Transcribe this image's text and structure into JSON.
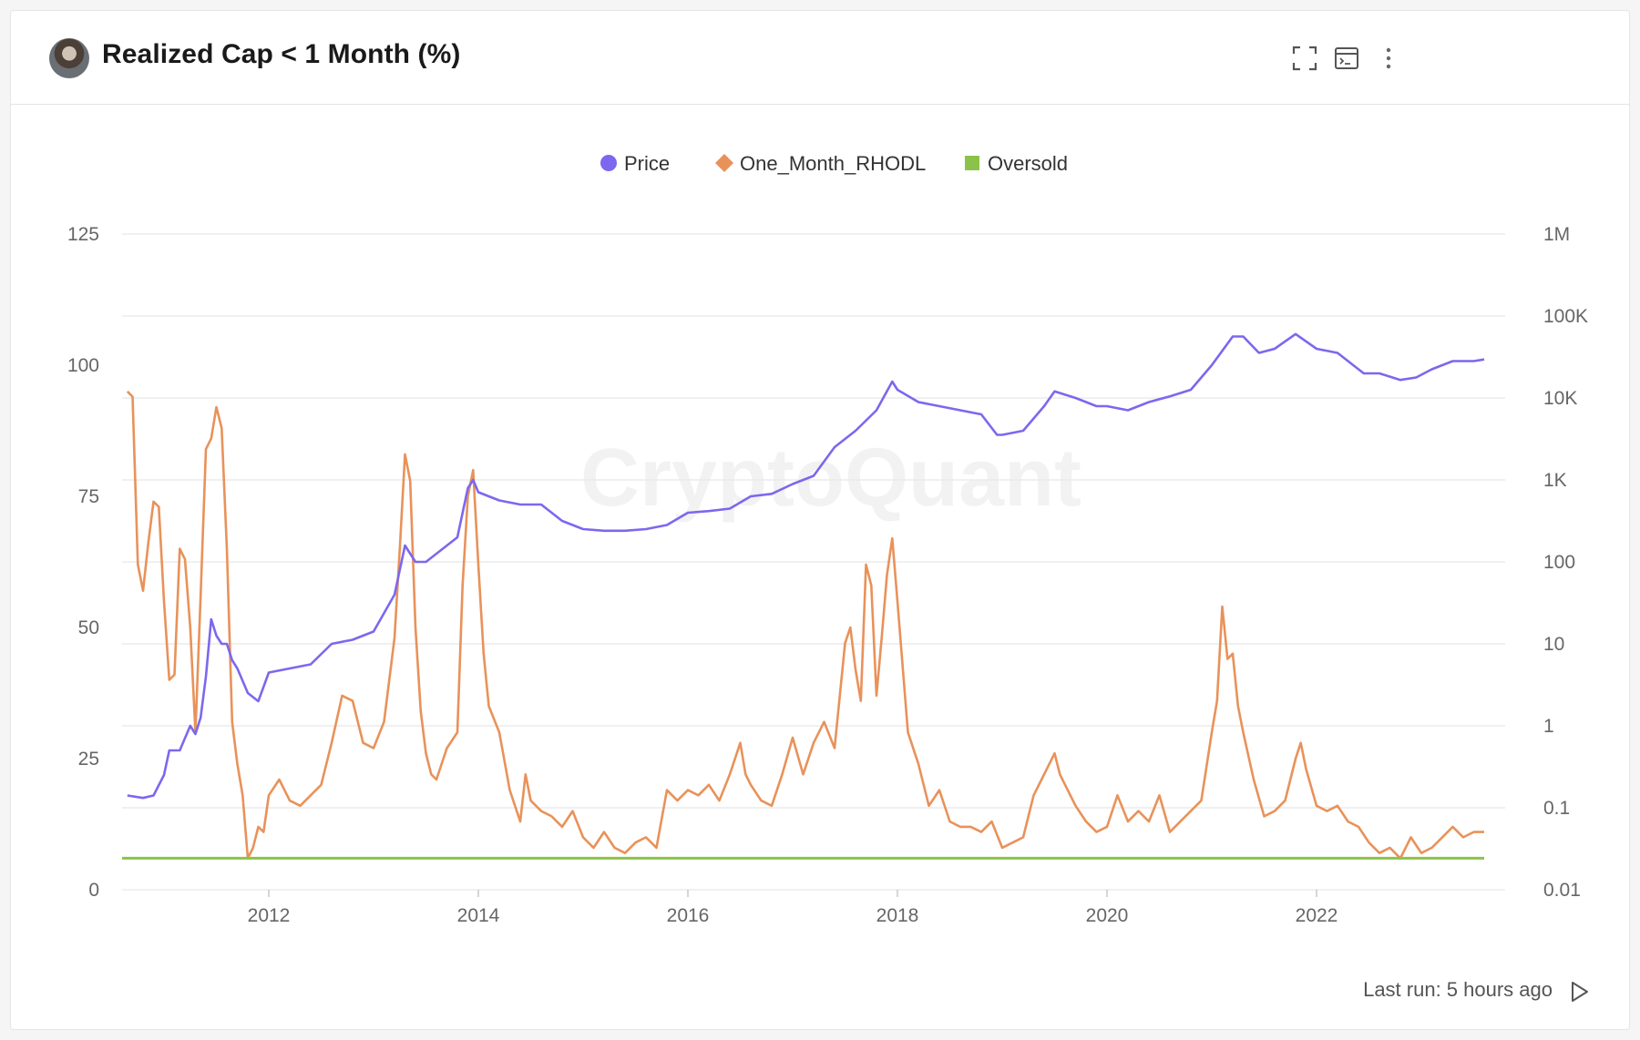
{
  "header": {
    "title": "Realized Cap < 1 Month (%)",
    "icons": [
      "avatar",
      "fullscreen-icon",
      "console-icon",
      "more-vertical-icon"
    ]
  },
  "footer": {
    "last_run": "Last run: 5 hours ago",
    "run_icon": "play-icon"
  },
  "watermark": "CryptoQuant",
  "colors": {
    "price": "#7b68ee",
    "rhodl": "#e8925a",
    "oversold": "#8bc34a",
    "grid": "#e8e8e8",
    "axis_text": "#666666"
  },
  "chart_data": {
    "type": "line",
    "title": "Realized Cap < 1 Month (%)",
    "legend": [
      {
        "name": "Price",
        "marker": "circle",
        "color": "#7b68ee"
      },
      {
        "name": "One_Month_RHODL",
        "marker": "diamond",
        "color": "#e8925a"
      },
      {
        "name": "Oversold",
        "marker": "square",
        "color": "#8bc34a"
      }
    ],
    "legend_position": "top-center",
    "x_range": [
      2010.6,
      2023.8
    ],
    "x_ticks": [
      {
        "v": 2012,
        "label": "2012"
      },
      {
        "v": 2014,
        "label": "2014"
      },
      {
        "v": 2016,
        "label": "2016"
      },
      {
        "v": 2018,
        "label": "2018"
      },
      {
        "v": 2020,
        "label": "2020"
      },
      {
        "v": 2022,
        "label": "2022"
      }
    ],
    "y_left": {
      "range": [
        0,
        125
      ],
      "ticks": [
        0,
        25,
        50,
        75,
        100,
        125
      ],
      "labels": [
        "0",
        "25",
        "50",
        "75",
        "100",
        "125"
      ]
    },
    "y_right": {
      "scale": "log",
      "log_range": [
        -2,
        6
      ],
      "labels": [
        "0.01",
        "0.1",
        "1",
        "10",
        "100",
        "1K",
        "10K",
        "100K",
        "1M"
      ]
    },
    "series": [
      {
        "name": "One_Month_RHODL",
        "axis": "left",
        "points": [
          [
            2010.65,
            95
          ],
          [
            2010.7,
            94
          ],
          [
            2010.75,
            62
          ],
          [
            2010.8,
            57
          ],
          [
            2010.85,
            66
          ],
          [
            2010.9,
            74
          ],
          [
            2010.95,
            73
          ],
          [
            2011.0,
            55
          ],
          [
            2011.05,
            40
          ],
          [
            2011.1,
            41
          ],
          [
            2011.15,
            65
          ],
          [
            2011.2,
            63
          ],
          [
            2011.25,
            50
          ],
          [
            2011.3,
            30
          ],
          [
            2011.35,
            56
          ],
          [
            2011.4,
            84
          ],
          [
            2011.45,
            86
          ],
          [
            2011.5,
            92
          ],
          [
            2011.55,
            88
          ],
          [
            2011.6,
            65
          ],
          [
            2011.65,
            32
          ],
          [
            2011.7,
            24
          ],
          [
            2011.75,
            18
          ],
          [
            2011.8,
            6
          ],
          [
            2011.85,
            8
          ],
          [
            2011.9,
            12
          ],
          [
            2011.95,
            11
          ],
          [
            2012.0,
            18
          ],
          [
            2012.1,
            21
          ],
          [
            2012.2,
            17
          ],
          [
            2012.3,
            16
          ],
          [
            2012.4,
            18
          ],
          [
            2012.5,
            20
          ],
          [
            2012.6,
            28
          ],
          [
            2012.7,
            37
          ],
          [
            2012.8,
            36
          ],
          [
            2012.9,
            28
          ],
          [
            2013.0,
            27
          ],
          [
            2013.1,
            32
          ],
          [
            2013.2,
            48
          ],
          [
            2013.25,
            65
          ],
          [
            2013.3,
            83
          ],
          [
            2013.35,
            78
          ],
          [
            2013.4,
            50
          ],
          [
            2013.45,
            34
          ],
          [
            2013.5,
            26
          ],
          [
            2013.55,
            22
          ],
          [
            2013.6,
            21
          ],
          [
            2013.7,
            27
          ],
          [
            2013.8,
            30
          ],
          [
            2013.85,
            58
          ],
          [
            2013.9,
            75
          ],
          [
            2013.95,
            80
          ],
          [
            2014.0,
            62
          ],
          [
            2014.05,
            45
          ],
          [
            2014.1,
            35
          ],
          [
            2014.2,
            30
          ],
          [
            2014.3,
            19
          ],
          [
            2014.4,
            13
          ],
          [
            2014.45,
            22
          ],
          [
            2014.5,
            17
          ],
          [
            2014.6,
            15
          ],
          [
            2014.7,
            14
          ],
          [
            2014.8,
            12
          ],
          [
            2014.9,
            15
          ],
          [
            2015.0,
            10
          ],
          [
            2015.1,
            8
          ],
          [
            2015.2,
            11
          ],
          [
            2015.3,
            8
          ],
          [
            2015.4,
            7
          ],
          [
            2015.5,
            9
          ],
          [
            2015.6,
            10
          ],
          [
            2015.7,
            8
          ],
          [
            2015.8,
            19
          ],
          [
            2015.9,
            17
          ],
          [
            2016.0,
            19
          ],
          [
            2016.1,
            18
          ],
          [
            2016.2,
            20
          ],
          [
            2016.3,
            17
          ],
          [
            2016.4,
            22
          ],
          [
            2016.5,
            28
          ],
          [
            2016.55,
            22
          ],
          [
            2016.6,
            20
          ],
          [
            2016.7,
            17
          ],
          [
            2016.8,
            16
          ],
          [
            2016.9,
            22
          ],
          [
            2017.0,
            29
          ],
          [
            2017.1,
            22
          ],
          [
            2017.2,
            28
          ],
          [
            2017.3,
            32
          ],
          [
            2017.4,
            27
          ],
          [
            2017.5,
            47
          ],
          [
            2017.55,
            50
          ],
          [
            2017.6,
            42
          ],
          [
            2017.65,
            36
          ],
          [
            2017.7,
            62
          ],
          [
            2017.75,
            58
          ],
          [
            2017.8,
            37
          ],
          [
            2017.85,
            48
          ],
          [
            2017.9,
            60
          ],
          [
            2017.95,
            67
          ],
          [
            2018.0,
            55
          ],
          [
            2018.1,
            30
          ],
          [
            2018.2,
            24
          ],
          [
            2018.3,
            16
          ],
          [
            2018.4,
            19
          ],
          [
            2018.5,
            13
          ],
          [
            2018.6,
            12
          ],
          [
            2018.7,
            12
          ],
          [
            2018.8,
            11
          ],
          [
            2018.9,
            13
          ],
          [
            2019.0,
            8
          ],
          [
            2019.1,
            9
          ],
          [
            2019.2,
            10
          ],
          [
            2019.3,
            18
          ],
          [
            2019.4,
            22
          ],
          [
            2019.5,
            26
          ],
          [
            2019.55,
            22
          ],
          [
            2019.6,
            20
          ],
          [
            2019.7,
            16
          ],
          [
            2019.8,
            13
          ],
          [
            2019.9,
            11
          ],
          [
            2020.0,
            12
          ],
          [
            2020.1,
            18
          ],
          [
            2020.2,
            13
          ],
          [
            2020.3,
            15
          ],
          [
            2020.4,
            13
          ],
          [
            2020.5,
            18
          ],
          [
            2020.6,
            11
          ],
          [
            2020.7,
            13
          ],
          [
            2020.8,
            15
          ],
          [
            2020.9,
            17
          ],
          [
            2021.0,
            30
          ],
          [
            2021.05,
            36
          ],
          [
            2021.1,
            54
          ],
          [
            2021.15,
            44
          ],
          [
            2021.2,
            45
          ],
          [
            2021.25,
            35
          ],
          [
            2021.3,
            30
          ],
          [
            2021.4,
            21
          ],
          [
            2021.5,
            14
          ],
          [
            2021.6,
            15
          ],
          [
            2021.7,
            17
          ],
          [
            2021.8,
            25
          ],
          [
            2021.85,
            28
          ],
          [
            2021.9,
            23
          ],
          [
            2022.0,
            16
          ],
          [
            2022.1,
            15
          ],
          [
            2022.2,
            16
          ],
          [
            2022.3,
            13
          ],
          [
            2022.4,
            12
          ],
          [
            2022.5,
            9
          ],
          [
            2022.6,
            7
          ],
          [
            2022.7,
            8
          ],
          [
            2022.8,
            6
          ],
          [
            2022.9,
            10
          ],
          [
            2023.0,
            7
          ],
          [
            2023.1,
            8
          ],
          [
            2023.2,
            10
          ],
          [
            2023.3,
            12
          ],
          [
            2023.4,
            10
          ],
          [
            2023.5,
            11
          ],
          [
            2023.6,
            11
          ]
        ]
      },
      {
        "name": "Price",
        "axis": "right",
        "log_values": [
          [
            2010.65,
            -0.85
          ],
          [
            2010.8,
            -0.88
          ],
          [
            2010.9,
            -0.85
          ],
          [
            2011.0,
            -0.6
          ],
          [
            2011.05,
            -0.3
          ],
          [
            2011.15,
            -0.3
          ],
          [
            2011.25,
            0
          ],
          [
            2011.3,
            -0.1
          ],
          [
            2011.35,
            0.1
          ],
          [
            2011.4,
            0.6
          ],
          [
            2011.45,
            1.3
          ],
          [
            2011.5,
            1.1
          ],
          [
            2011.55,
            1.0
          ],
          [
            2011.6,
            1.0
          ],
          [
            2011.65,
            0.8
          ],
          [
            2011.7,
            0.7
          ],
          [
            2011.8,
            0.4
          ],
          [
            2011.9,
            0.3
          ],
          [
            2012.0,
            0.65
          ],
          [
            2012.2,
            0.7
          ],
          [
            2012.4,
            0.75
          ],
          [
            2012.6,
            1.0
          ],
          [
            2012.8,
            1.05
          ],
          [
            2013.0,
            1.15
          ],
          [
            2013.2,
            1.6
          ],
          [
            2013.3,
            2.2
          ],
          [
            2013.4,
            2.0
          ],
          [
            2013.5,
            2.0
          ],
          [
            2013.6,
            2.1
          ],
          [
            2013.8,
            2.3
          ],
          [
            2013.9,
            2.9
          ],
          [
            2013.95,
            3.0
          ],
          [
            2014.0,
            2.85
          ],
          [
            2014.2,
            2.75
          ],
          [
            2014.4,
            2.7
          ],
          [
            2014.6,
            2.7
          ],
          [
            2014.8,
            2.5
          ],
          [
            2015.0,
            2.4
          ],
          [
            2015.2,
            2.38
          ],
          [
            2015.4,
            2.38
          ],
          [
            2015.6,
            2.4
          ],
          [
            2015.8,
            2.45
          ],
          [
            2016.0,
            2.6
          ],
          [
            2016.2,
            2.62
          ],
          [
            2016.4,
            2.65
          ],
          [
            2016.6,
            2.8
          ],
          [
            2016.8,
            2.83
          ],
          [
            2017.0,
            2.95
          ],
          [
            2017.2,
            3.05
          ],
          [
            2017.4,
            3.4
          ],
          [
            2017.6,
            3.6
          ],
          [
            2017.8,
            3.85
          ],
          [
            2017.95,
            4.2
          ],
          [
            2018.0,
            4.1
          ],
          [
            2018.2,
            3.95
          ],
          [
            2018.4,
            3.9
          ],
          [
            2018.6,
            3.85
          ],
          [
            2018.8,
            3.8
          ],
          [
            2018.95,
            3.55
          ],
          [
            2019.0,
            3.55
          ],
          [
            2019.2,
            3.6
          ],
          [
            2019.4,
            3.9
          ],
          [
            2019.5,
            4.08
          ],
          [
            2019.7,
            4.0
          ],
          [
            2019.9,
            3.9
          ],
          [
            2020.0,
            3.9
          ],
          [
            2020.2,
            3.85
          ],
          [
            2020.4,
            3.95
          ],
          [
            2020.6,
            4.02
          ],
          [
            2020.8,
            4.1
          ],
          [
            2021.0,
            4.4
          ],
          [
            2021.2,
            4.75
          ],
          [
            2021.3,
            4.75
          ],
          [
            2021.45,
            4.55
          ],
          [
            2021.6,
            4.6
          ],
          [
            2021.8,
            4.78
          ],
          [
            2022.0,
            4.6
          ],
          [
            2022.2,
            4.55
          ],
          [
            2022.45,
            4.3
          ],
          [
            2022.6,
            4.3
          ],
          [
            2022.8,
            4.22
          ],
          [
            2022.95,
            4.25
          ],
          [
            2023.1,
            4.35
          ],
          [
            2023.3,
            4.45
          ],
          [
            2023.5,
            4.45
          ],
          [
            2023.6,
            4.47
          ]
        ]
      },
      {
        "name": "Oversold",
        "axis": "left",
        "points": [
          [
            2010.6,
            6
          ],
          [
            2023.6,
            6
          ]
        ]
      }
    ]
  }
}
